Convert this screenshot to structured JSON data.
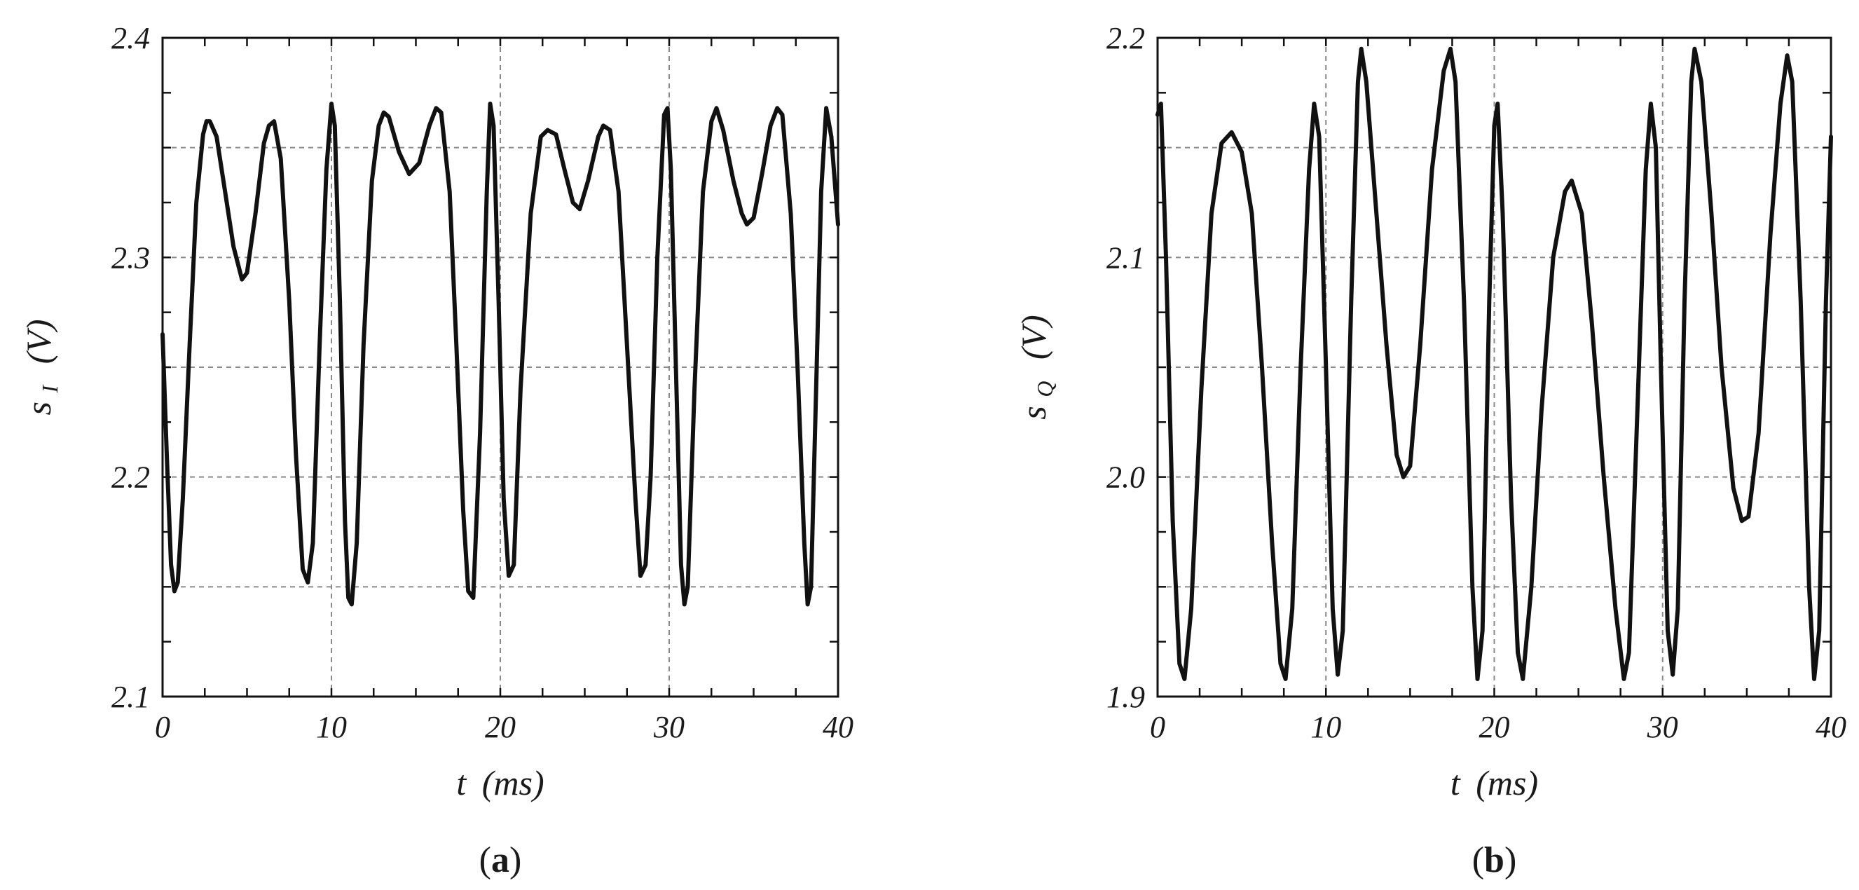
{
  "chart_data": [
    {
      "type": "line",
      "panel_label": {
        "open": "(",
        "letter": "a",
        "close": ")"
      },
      "xlabel": {
        "var": "t",
        "unit": "(ms)"
      },
      "ylabel": {
        "var": "s",
        "sub": "I",
        "unit": "(V)"
      },
      "xlim": [
        0,
        40
      ],
      "ylim": [
        2.1,
        2.4
      ],
      "x_ticks": [
        0,
        10,
        20,
        30,
        40
      ],
      "x_tick_labels": [
        "0",
        "10",
        "20",
        "30",
        "40"
      ],
      "y_ticks": [
        2.1,
        2.2,
        2.3,
        2.4
      ],
      "y_tick_labels": [
        "2.1",
        "2.2",
        "2.3",
        "2.4"
      ],
      "x_grid": [
        10,
        20,
        30
      ],
      "y_grid": [
        2.15,
        2.2,
        2.25,
        2.3,
        2.35
      ],
      "x_minor_step": 2.5,
      "y_minor_step": 0.025,
      "grid": true,
      "series": [
        {
          "color": "#111111",
          "points": [
            [
              0.0,
              2.265
            ],
            [
              0.25,
              2.21
            ],
            [
              0.5,
              2.16
            ],
            [
              0.7,
              2.148
            ],
            [
              0.9,
              2.152
            ],
            [
              1.2,
              2.19
            ],
            [
              1.6,
              2.26
            ],
            [
              2.0,
              2.325
            ],
            [
              2.4,
              2.356
            ],
            [
              2.6,
              2.362
            ],
            [
              2.8,
              2.362
            ],
            [
              3.2,
              2.355
            ],
            [
              3.7,
              2.33
            ],
            [
              4.2,
              2.305
            ],
            [
              4.7,
              2.29
            ],
            [
              5.0,
              2.293
            ],
            [
              5.5,
              2.32
            ],
            [
              6.0,
              2.352
            ],
            [
              6.3,
              2.36
            ],
            [
              6.6,
              2.362
            ],
            [
              7.0,
              2.345
            ],
            [
              7.5,
              2.28
            ],
            [
              7.9,
              2.21
            ],
            [
              8.3,
              2.158
            ],
            [
              8.6,
              2.152
            ],
            [
              8.9,
              2.17
            ],
            [
              9.3,
              2.26
            ],
            [
              9.7,
              2.34
            ],
            [
              10.0,
              2.37
            ],
            [
              10.2,
              2.36
            ],
            [
              10.5,
              2.28
            ],
            [
              10.8,
              2.18
            ],
            [
              11.0,
              2.145
            ],
            [
              11.2,
              2.142
            ],
            [
              11.5,
              2.17
            ],
            [
              11.9,
              2.26
            ],
            [
              12.4,
              2.335
            ],
            [
              12.8,
              2.36
            ],
            [
              13.1,
              2.366
            ],
            [
              13.4,
              2.364
            ],
            [
              14.0,
              2.348
            ],
            [
              14.6,
              2.338
            ],
            [
              15.2,
              2.343
            ],
            [
              15.8,
              2.36
            ],
            [
              16.2,
              2.368
            ],
            [
              16.5,
              2.366
            ],
            [
              17.0,
              2.33
            ],
            [
              17.4,
              2.26
            ],
            [
              17.8,
              2.185
            ],
            [
              18.1,
              2.148
            ],
            [
              18.4,
              2.145
            ],
            [
              18.8,
              2.22
            ],
            [
              19.2,
              2.33
            ],
            [
              19.4,
              2.37
            ],
            [
              19.6,
              2.36
            ],
            [
              19.9,
              2.28
            ],
            [
              20.2,
              2.19
            ],
            [
              20.5,
              2.155
            ],
            [
              20.8,
              2.16
            ],
            [
              21.2,
              2.24
            ],
            [
              21.8,
              2.32
            ],
            [
              22.4,
              2.355
            ],
            [
              22.8,
              2.358
            ],
            [
              23.3,
              2.356
            ],
            [
              23.8,
              2.34
            ],
            [
              24.3,
              2.325
            ],
            [
              24.7,
              2.322
            ],
            [
              25.2,
              2.335
            ],
            [
              25.8,
              2.355
            ],
            [
              26.1,
              2.36
            ],
            [
              26.5,
              2.358
            ],
            [
              27.0,
              2.33
            ],
            [
              27.5,
              2.26
            ],
            [
              28.0,
              2.19
            ],
            [
              28.3,
              2.155
            ],
            [
              28.6,
              2.16
            ],
            [
              28.9,
              2.2
            ],
            [
              29.3,
              2.3
            ],
            [
              29.7,
              2.365
            ],
            [
              29.9,
              2.368
            ],
            [
              30.1,
              2.34
            ],
            [
              30.4,
              2.25
            ],
            [
              30.7,
              2.16
            ],
            [
              30.9,
              2.142
            ],
            [
              31.1,
              2.15
            ],
            [
              31.5,
              2.24
            ],
            [
              32.0,
              2.33
            ],
            [
              32.5,
              2.362
            ],
            [
              32.8,
              2.368
            ],
            [
              33.2,
              2.358
            ],
            [
              33.8,
              2.335
            ],
            [
              34.3,
              2.32
            ],
            [
              34.6,
              2.315
            ],
            [
              35.0,
              2.318
            ],
            [
              35.5,
              2.338
            ],
            [
              36.0,
              2.36
            ],
            [
              36.4,
              2.368
            ],
            [
              36.7,
              2.365
            ],
            [
              37.2,
              2.32
            ],
            [
              37.6,
              2.25
            ],
            [
              38.0,
              2.17
            ],
            [
              38.2,
              2.142
            ],
            [
              38.4,
              2.15
            ],
            [
              38.7,
              2.24
            ],
            [
              39.0,
              2.33
            ],
            [
              39.3,
              2.368
            ],
            [
              39.6,
              2.355
            ],
            [
              39.85,
              2.33
            ],
            [
              40.0,
              2.315
            ]
          ]
        }
      ]
    },
    {
      "type": "line",
      "panel_label": {
        "open": "(",
        "letter": "b",
        "close": ")"
      },
      "xlabel": {
        "var": "t",
        "unit": "(ms)"
      },
      "ylabel": {
        "var": "s",
        "sub": "Q",
        "unit": "(V)"
      },
      "xlim": [
        0,
        40
      ],
      "ylim": [
        1.9,
        2.2
      ],
      "x_ticks": [
        0,
        10,
        20,
        30,
        40
      ],
      "x_tick_labels": [
        "0",
        "10",
        "20",
        "30",
        "40"
      ],
      "y_ticks": [
        1.9,
        2.0,
        2.1,
        2.2
      ],
      "y_tick_labels": [
        "1.9",
        "2.0",
        "2.1",
        "2.2"
      ],
      "x_grid": [
        10,
        20,
        30
      ],
      "y_grid": [
        1.95,
        2.0,
        2.05,
        2.1,
        2.15
      ],
      "x_minor_step": 2.5,
      "y_minor_step": 0.025,
      "grid": true,
      "series": [
        {
          "color": "#111111",
          "points": [
            [
              0.0,
              2.165
            ],
            [
              0.2,
              2.17
            ],
            [
              0.5,
              2.1
            ],
            [
              0.9,
              1.98
            ],
            [
              1.3,
              1.915
            ],
            [
              1.6,
              1.908
            ],
            [
              2.0,
              1.94
            ],
            [
              2.6,
              2.04
            ],
            [
              3.2,
              2.12
            ],
            [
              3.8,
              2.152
            ],
            [
              4.4,
              2.157
            ],
            [
              5.0,
              2.148
            ],
            [
              5.6,
              2.12
            ],
            [
              6.2,
              2.05
            ],
            [
              6.8,
              1.97
            ],
            [
              7.3,
              1.915
            ],
            [
              7.6,
              1.908
            ],
            [
              8.0,
              1.94
            ],
            [
              8.5,
              2.05
            ],
            [
              9.0,
              2.14
            ],
            [
              9.3,
              2.17
            ],
            [
              9.6,
              2.155
            ],
            [
              10.0,
              2.05
            ],
            [
              10.4,
              1.94
            ],
            [
              10.7,
              1.91
            ],
            [
              11.0,
              1.93
            ],
            [
              11.5,
              2.08
            ],
            [
              11.9,
              2.18
            ],
            [
              12.1,
              2.195
            ],
            [
              12.4,
              2.18
            ],
            [
              13.0,
              2.12
            ],
            [
              13.6,
              2.06
            ],
            [
              14.2,
              2.01
            ],
            [
              14.6,
              2.0
            ],
            [
              15.0,
              2.005
            ],
            [
              15.6,
              2.06
            ],
            [
              16.3,
              2.14
            ],
            [
              17.0,
              2.185
            ],
            [
              17.4,
              2.195
            ],
            [
              17.7,
              2.18
            ],
            [
              18.2,
              2.08
            ],
            [
              18.7,
              1.95
            ],
            [
              19.0,
              1.908
            ],
            [
              19.3,
              1.93
            ],
            [
              19.7,
              2.08
            ],
            [
              20.0,
              2.16
            ],
            [
              20.2,
              2.17
            ],
            [
              20.5,
              2.12
            ],
            [
              21.0,
              1.99
            ],
            [
              21.4,
              1.92
            ],
            [
              21.7,
              1.908
            ],
            [
              22.2,
              1.95
            ],
            [
              22.8,
              2.03
            ],
            [
              23.5,
              2.1
            ],
            [
              24.2,
              2.13
            ],
            [
              24.6,
              2.135
            ],
            [
              25.2,
              2.12
            ],
            [
              25.8,
              2.07
            ],
            [
              26.5,
              2.0
            ],
            [
              27.2,
              1.94
            ],
            [
              27.7,
              1.908
            ],
            [
              28.0,
              1.92
            ],
            [
              28.5,
              2.03
            ],
            [
              29.0,
              2.14
            ],
            [
              29.3,
              2.17
            ],
            [
              29.6,
              2.15
            ],
            [
              29.9,
              2.05
            ],
            [
              30.3,
              1.93
            ],
            [
              30.6,
              1.91
            ],
            [
              30.9,
              1.94
            ],
            [
              31.3,
              2.08
            ],
            [
              31.7,
              2.18
            ],
            [
              31.9,
              2.195
            ],
            [
              32.3,
              2.18
            ],
            [
              32.9,
              2.12
            ],
            [
              33.5,
              2.05
            ],
            [
              34.2,
              1.995
            ],
            [
              34.7,
              1.98
            ],
            [
              35.1,
              1.982
            ],
            [
              35.7,
              2.02
            ],
            [
              36.4,
              2.11
            ],
            [
              37.0,
              2.17
            ],
            [
              37.4,
              2.192
            ],
            [
              37.7,
              2.18
            ],
            [
              38.2,
              2.08
            ],
            [
              38.7,
              1.95
            ],
            [
              39.0,
              1.908
            ],
            [
              39.3,
              1.93
            ],
            [
              39.7,
              2.08
            ],
            [
              40.0,
              2.155
            ]
          ]
        }
      ]
    }
  ]
}
